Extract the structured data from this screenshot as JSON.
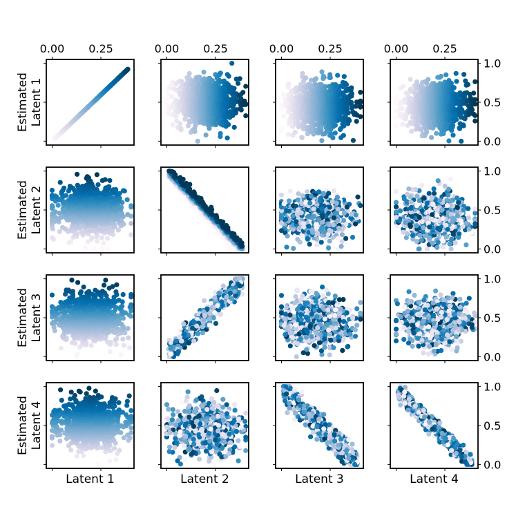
{
  "chart_data": {
    "type": "scatter",
    "description_axes": "4x4 grid of scatter plots: rows = estimated latents, columns = true latents; points colored by value of Latent 1",
    "rows": 4,
    "cols": 4,
    "xlim": [
      -0.03,
      0.42
    ],
    "ylim": [
      -0.05,
      1.05
    ],
    "top_x_ticks": [
      0.0,
      0.25
    ],
    "top_x_tick_labels": [
      "0.00",
      "0.25"
    ],
    "right_y_ticks": [
      0.0,
      0.5,
      1.0
    ],
    "right_y_tick_labels": [
      "0.0",
      "0.5",
      "1.0"
    ],
    "row_labels": [
      [
        "Estimated",
        "Latent 1"
      ],
      [
        "Estimated",
        "Latent 2"
      ],
      [
        "Estimated",
        "Latent 3"
      ],
      [
        "Estimated",
        "Latent 4"
      ]
    ],
    "col_labels": [
      "Latent 1",
      "Latent 2",
      "Latent 3",
      "Latent 4"
    ],
    "colormap": "PuBu",
    "color_stops": [
      "#fff7fb",
      "#ece7f2",
      "#d0d1e6",
      "#a6bddb",
      "#74a9cf",
      "#3690c0",
      "#0570b0",
      "#045a8d",
      "#023858"
    ],
    "panels": [
      {
        "row": 0,
        "col": 0,
        "relation": "linear",
        "slope": 2.38,
        "intercept": 0.0,
        "spread": 0.0,
        "y_center": 0.5,
        "color_by": "x",
        "n_points": 260
      },
      {
        "row": 0,
        "col": 1,
        "relation": "cloud",
        "x_center": 0.2,
        "x_spread": 0.09,
        "y_center": 0.5,
        "y_spread": 0.17,
        "color_by": "x",
        "n_points": 900
      },
      {
        "row": 0,
        "col": 2,
        "relation": "cloud",
        "x_center": 0.2,
        "x_spread": 0.09,
        "y_center": 0.45,
        "y_spread": 0.17,
        "color_by": "x",
        "n_points": 900
      },
      {
        "row": 0,
        "col": 3,
        "relation": "cloud",
        "x_center": 0.2,
        "x_spread": 0.09,
        "y_center": 0.45,
        "y_spread": 0.16,
        "color_by": "x",
        "n_points": 900
      },
      {
        "row": 1,
        "col": 0,
        "relation": "cloud",
        "x_center": 0.2,
        "x_spread": 0.09,
        "y_center": 0.5,
        "y_spread": 0.17,
        "color_by": "y",
        "n_points": 900
      },
      {
        "row": 1,
        "col": 1,
        "relation": "linear",
        "slope": -2.6,
        "intercept": 1.0,
        "spread": 0.05,
        "color_by": "band",
        "n_points": 500
      },
      {
        "row": 1,
        "col": 2,
        "relation": "cloud",
        "x_center": 0.17,
        "x_spread": 0.09,
        "y_center": 0.42,
        "y_spread": 0.15,
        "color_by": "random",
        "n_points": 900
      },
      {
        "row": 1,
        "col": 3,
        "relation": "cloud",
        "x_center": 0.2,
        "x_spread": 0.09,
        "y_center": 0.4,
        "y_spread": 0.16,
        "color_by": "random",
        "n_points": 900
      },
      {
        "row": 2,
        "col": 0,
        "relation": "cloud",
        "x_center": 0.2,
        "x_spread": 0.09,
        "y_center": 0.5,
        "y_spread": 0.17,
        "color_by": "y",
        "n_points": 900
      },
      {
        "row": 2,
        "col": 1,
        "relation": "linear",
        "slope": 2.45,
        "intercept": 0.02,
        "spread": 0.07,
        "color_by": "random",
        "n_points": 500
      },
      {
        "row": 2,
        "col": 2,
        "relation": "cloud",
        "x_center": 0.18,
        "x_spread": 0.09,
        "y_center": 0.45,
        "y_spread": 0.16,
        "color_by": "random",
        "n_points": 900
      },
      {
        "row": 2,
        "col": 3,
        "relation": "cloud",
        "x_center": 0.2,
        "x_spread": 0.09,
        "y_center": 0.45,
        "y_spread": 0.15,
        "color_by": "random",
        "n_points": 900
      },
      {
        "row": 3,
        "col": 0,
        "relation": "cloud",
        "x_center": 0.2,
        "x_spread": 0.09,
        "y_center": 0.52,
        "y_spread": 0.17,
        "color_by": "y",
        "n_points": 900
      },
      {
        "row": 3,
        "col": 1,
        "relation": "cloud",
        "x_center": 0.2,
        "x_spread": 0.09,
        "y_center": 0.45,
        "y_spread": 0.17,
        "color_by": "random",
        "n_points": 900
      },
      {
        "row": 3,
        "col": 2,
        "relation": "linear",
        "slope": -2.4,
        "intercept": 0.96,
        "spread": 0.07,
        "color_by": "random",
        "n_points": 700
      },
      {
        "row": 3,
        "col": 3,
        "relation": "linear",
        "slope": -2.45,
        "intercept": 0.96,
        "spread": 0.05,
        "color_by": "random",
        "n_points": 700
      }
    ]
  }
}
